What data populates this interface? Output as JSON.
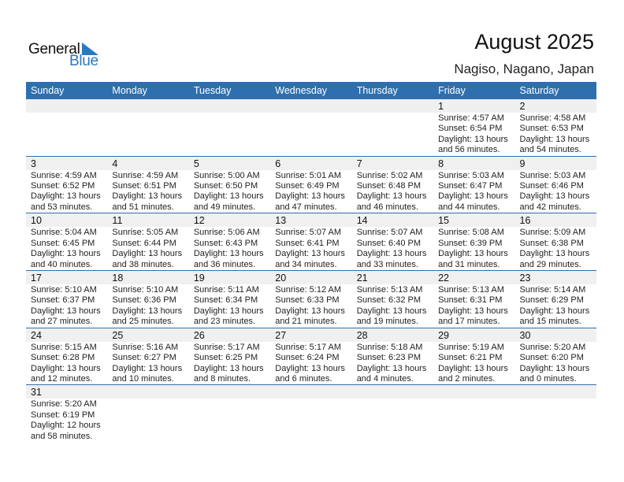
{
  "logo": {
    "text_general": "General",
    "text_blue": "Blue",
    "brand_color": "#2a78bf"
  },
  "header": {
    "title": "August 2025",
    "location": "Nagiso, Nagano, Japan"
  },
  "colors": {
    "header_bg": "#2e6fb0",
    "date_band": "#f0f0f0"
  },
  "weekdays": [
    "Sunday",
    "Monday",
    "Tuesday",
    "Wednesday",
    "Thursday",
    "Friday",
    "Saturday"
  ],
  "weeks": [
    [
      null,
      null,
      null,
      null,
      null,
      {
        "day": "1",
        "sunrise": "Sunrise: 4:57 AM",
        "sunset": "Sunset: 6:54 PM",
        "daylight": "Daylight: 13 hours",
        "minutes": "and 56 minutes."
      },
      {
        "day": "2",
        "sunrise": "Sunrise: 4:58 AM",
        "sunset": "Sunset: 6:53 PM",
        "daylight": "Daylight: 13 hours",
        "minutes": "and 54 minutes."
      }
    ],
    [
      {
        "day": "3",
        "sunrise": "Sunrise: 4:59 AM",
        "sunset": "Sunset: 6:52 PM",
        "daylight": "Daylight: 13 hours",
        "minutes": "and 53 minutes."
      },
      {
        "day": "4",
        "sunrise": "Sunrise: 4:59 AM",
        "sunset": "Sunset: 6:51 PM",
        "daylight": "Daylight: 13 hours",
        "minutes": "and 51 minutes."
      },
      {
        "day": "5",
        "sunrise": "Sunrise: 5:00 AM",
        "sunset": "Sunset: 6:50 PM",
        "daylight": "Daylight: 13 hours",
        "minutes": "and 49 minutes."
      },
      {
        "day": "6",
        "sunrise": "Sunrise: 5:01 AM",
        "sunset": "Sunset: 6:49 PM",
        "daylight": "Daylight: 13 hours",
        "minutes": "and 47 minutes."
      },
      {
        "day": "7",
        "sunrise": "Sunrise: 5:02 AM",
        "sunset": "Sunset: 6:48 PM",
        "daylight": "Daylight: 13 hours",
        "minutes": "and 46 minutes."
      },
      {
        "day": "8",
        "sunrise": "Sunrise: 5:03 AM",
        "sunset": "Sunset: 6:47 PM",
        "daylight": "Daylight: 13 hours",
        "minutes": "and 44 minutes."
      },
      {
        "day": "9",
        "sunrise": "Sunrise: 5:03 AM",
        "sunset": "Sunset: 6:46 PM",
        "daylight": "Daylight: 13 hours",
        "minutes": "and 42 minutes."
      }
    ],
    [
      {
        "day": "10",
        "sunrise": "Sunrise: 5:04 AM",
        "sunset": "Sunset: 6:45 PM",
        "daylight": "Daylight: 13 hours",
        "minutes": "and 40 minutes."
      },
      {
        "day": "11",
        "sunrise": "Sunrise: 5:05 AM",
        "sunset": "Sunset: 6:44 PM",
        "daylight": "Daylight: 13 hours",
        "minutes": "and 38 minutes."
      },
      {
        "day": "12",
        "sunrise": "Sunrise: 5:06 AM",
        "sunset": "Sunset: 6:43 PM",
        "daylight": "Daylight: 13 hours",
        "minutes": "and 36 minutes."
      },
      {
        "day": "13",
        "sunrise": "Sunrise: 5:07 AM",
        "sunset": "Sunset: 6:41 PM",
        "daylight": "Daylight: 13 hours",
        "minutes": "and 34 minutes."
      },
      {
        "day": "14",
        "sunrise": "Sunrise: 5:07 AM",
        "sunset": "Sunset: 6:40 PM",
        "daylight": "Daylight: 13 hours",
        "minutes": "and 33 minutes."
      },
      {
        "day": "15",
        "sunrise": "Sunrise: 5:08 AM",
        "sunset": "Sunset: 6:39 PM",
        "daylight": "Daylight: 13 hours",
        "minutes": "and 31 minutes."
      },
      {
        "day": "16",
        "sunrise": "Sunrise: 5:09 AM",
        "sunset": "Sunset: 6:38 PM",
        "daylight": "Daylight: 13 hours",
        "minutes": "and 29 minutes."
      }
    ],
    [
      {
        "day": "17",
        "sunrise": "Sunrise: 5:10 AM",
        "sunset": "Sunset: 6:37 PM",
        "daylight": "Daylight: 13 hours",
        "minutes": "and 27 minutes."
      },
      {
        "day": "18",
        "sunrise": "Sunrise: 5:10 AM",
        "sunset": "Sunset: 6:36 PM",
        "daylight": "Daylight: 13 hours",
        "minutes": "and 25 minutes."
      },
      {
        "day": "19",
        "sunrise": "Sunrise: 5:11 AM",
        "sunset": "Sunset: 6:34 PM",
        "daylight": "Daylight: 13 hours",
        "minutes": "and 23 minutes."
      },
      {
        "day": "20",
        "sunrise": "Sunrise: 5:12 AM",
        "sunset": "Sunset: 6:33 PM",
        "daylight": "Daylight: 13 hours",
        "minutes": "and 21 minutes."
      },
      {
        "day": "21",
        "sunrise": "Sunrise: 5:13 AM",
        "sunset": "Sunset: 6:32 PM",
        "daylight": "Daylight: 13 hours",
        "minutes": "and 19 minutes."
      },
      {
        "day": "22",
        "sunrise": "Sunrise: 5:13 AM",
        "sunset": "Sunset: 6:31 PM",
        "daylight": "Daylight: 13 hours",
        "minutes": "and 17 minutes."
      },
      {
        "day": "23",
        "sunrise": "Sunrise: 5:14 AM",
        "sunset": "Sunset: 6:29 PM",
        "daylight": "Daylight: 13 hours",
        "minutes": "and 15 minutes."
      }
    ],
    [
      {
        "day": "24",
        "sunrise": "Sunrise: 5:15 AM",
        "sunset": "Sunset: 6:28 PM",
        "daylight": "Daylight: 13 hours",
        "minutes": "and 12 minutes."
      },
      {
        "day": "25",
        "sunrise": "Sunrise: 5:16 AM",
        "sunset": "Sunset: 6:27 PM",
        "daylight": "Daylight: 13 hours",
        "minutes": "and 10 minutes."
      },
      {
        "day": "26",
        "sunrise": "Sunrise: 5:17 AM",
        "sunset": "Sunset: 6:25 PM",
        "daylight": "Daylight: 13 hours",
        "minutes": "and 8 minutes."
      },
      {
        "day": "27",
        "sunrise": "Sunrise: 5:17 AM",
        "sunset": "Sunset: 6:24 PM",
        "daylight": "Daylight: 13 hours",
        "minutes": "and 6 minutes."
      },
      {
        "day": "28",
        "sunrise": "Sunrise: 5:18 AM",
        "sunset": "Sunset: 6:23 PM",
        "daylight": "Daylight: 13 hours",
        "minutes": "and 4 minutes."
      },
      {
        "day": "29",
        "sunrise": "Sunrise: 5:19 AM",
        "sunset": "Sunset: 6:21 PM",
        "daylight": "Daylight: 13 hours",
        "minutes": "and 2 minutes."
      },
      {
        "day": "30",
        "sunrise": "Sunrise: 5:20 AM",
        "sunset": "Sunset: 6:20 PM",
        "daylight": "Daylight: 13 hours",
        "minutes": "and 0 minutes."
      }
    ],
    [
      {
        "day": "31",
        "sunrise": "Sunrise: 5:20 AM",
        "sunset": "Sunset: 6:19 PM",
        "daylight": "Daylight: 12 hours",
        "minutes": "and 58 minutes."
      },
      null,
      null,
      null,
      null,
      null,
      null
    ]
  ]
}
